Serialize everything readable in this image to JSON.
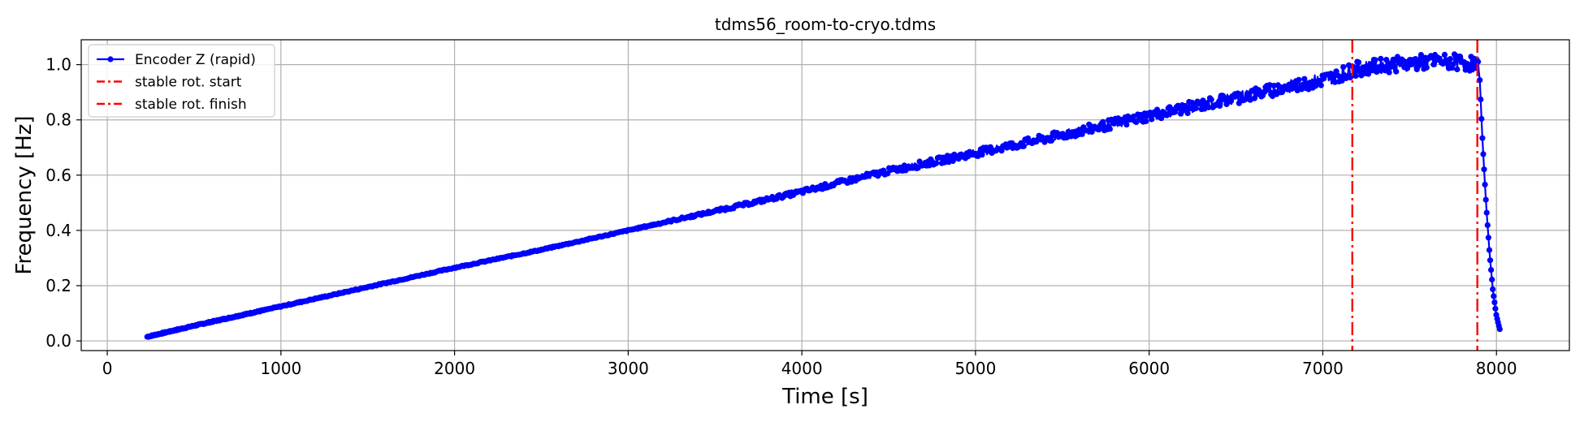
{
  "chart_data": {
    "type": "line",
    "title": "tdms56_room-to-cryo.tdms",
    "xlabel": "Time [s]",
    "ylabel": "Frequency [Hz]",
    "xlim": [
      -150,
      8420
    ],
    "ylim": [
      -0.035,
      1.09
    ],
    "xticks": [
      0,
      1000,
      2000,
      3000,
      4000,
      5000,
      6000,
      7000,
      8000
    ],
    "xtick_labels": [
      "0",
      "1000",
      "2000",
      "3000",
      "4000",
      "5000",
      "6000",
      "7000",
      "8000"
    ],
    "yticks": [
      0.0,
      0.2,
      0.4,
      0.6,
      0.8,
      1.0
    ],
    "ytick_labels": [
      "0.0",
      "0.2",
      "0.4",
      "0.6",
      "0.8",
      "1.0"
    ],
    "grid": true,
    "legend_position": "top-left",
    "series": [
      {
        "name": "Encoder Z (rapid)",
        "color": "#0000ff",
        "style": "solid line with dot markers",
        "x": [
          230,
          500,
          1000,
          1500,
          2000,
          2500,
          3000,
          3500,
          4000,
          4500,
          5000,
          5500,
          6000,
          6500,
          7000,
          7200,
          7400,
          7600,
          7800,
          7900,
          7920,
          7940,
          7960,
          7980,
          8000,
          8020
        ],
        "y": [
          0.015,
          0.055,
          0.125,
          0.195,
          0.265,
          0.33,
          0.4,
          0.47,
          0.54,
          0.615,
          0.68,
          0.745,
          0.815,
          0.88,
          0.945,
          0.985,
          1.0,
          1.01,
          1.01,
          1.0,
          0.72,
          0.5,
          0.32,
          0.18,
          0.09,
          0.04
        ]
      },
      {
        "name": "stable rot. start",
        "color": "#ff0000",
        "style": "dash-dot vertical line",
        "x": 7170
      },
      {
        "name": "stable rot. finish",
        "color": "#ff0000",
        "style": "dash-dot vertical line",
        "x": 7890
      }
    ]
  }
}
